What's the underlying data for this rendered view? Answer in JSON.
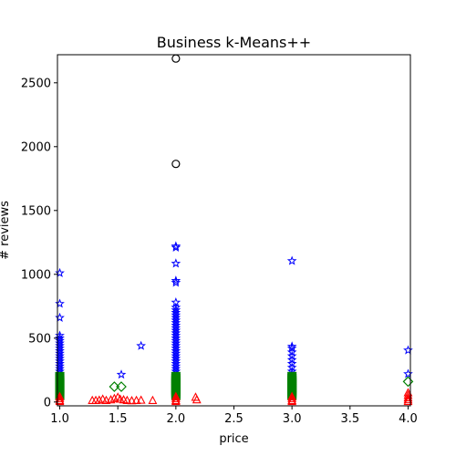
{
  "chart_data": {
    "type": "scatter",
    "title": "Business k-Means++",
    "xlabel": "price",
    "ylabel": "# reviews",
    "xlim": [
      0.98,
      4.02
    ],
    "ylim": [
      -30,
      2720
    ],
    "xticks": [
      "1.0",
      "1.5",
      "2.0",
      "2.5",
      "3.0",
      "3.5",
      "4.0"
    ],
    "xtick_values": [
      1.0,
      1.5,
      2.0,
      2.5,
      3.0,
      3.5,
      4.0
    ],
    "yticks": [
      "0",
      "500",
      "1000",
      "1500",
      "2000",
      "2500"
    ],
    "ytick_values": [
      0,
      500,
      1000,
      1500,
      2000,
      2500
    ],
    "grid": false,
    "series": [
      {
        "marker": "circle",
        "color": "#000000",
        "points": [
          [
            2.0,
            2690
          ],
          [
            2.0,
            1865
          ]
        ]
      },
      {
        "marker": "star",
        "color": "#0000ff",
        "points": [
          [
            1.0,
            1010
          ],
          [
            1.0,
            770
          ],
          [
            1.0,
            660
          ],
          [
            1.0,
            520
          ],
          [
            1.0,
            500
          ],
          [
            1.0,
            480
          ],
          [
            1.0,
            460
          ],
          [
            1.0,
            440
          ],
          [
            1.0,
            420
          ],
          [
            1.0,
            400
          ],
          [
            1.0,
            380
          ],
          [
            1.0,
            360
          ],
          [
            1.0,
            340
          ],
          [
            1.0,
            320
          ],
          [
            1.0,
            300
          ],
          [
            1.0,
            280
          ],
          [
            1.0,
            260
          ],
          [
            1.0,
            240
          ],
          [
            1.0,
            220
          ],
          [
            1.53,
            215
          ],
          [
            1.7,
            440
          ],
          [
            2.0,
            1220
          ],
          [
            2.0,
            1210
          ],
          [
            2.0,
            1085
          ],
          [
            2.0,
            950
          ],
          [
            2.0,
            935
          ],
          [
            2.0,
            780
          ],
          [
            2.0,
            740
          ],
          [
            2.0,
            720
          ],
          [
            2.0,
            700
          ],
          [
            2.0,
            680
          ],
          [
            2.0,
            660
          ],
          [
            2.0,
            640
          ],
          [
            2.0,
            620
          ],
          [
            2.0,
            600
          ],
          [
            2.0,
            580
          ],
          [
            2.0,
            560
          ],
          [
            2.0,
            540
          ],
          [
            2.0,
            520
          ],
          [
            2.0,
            500
          ],
          [
            2.0,
            480
          ],
          [
            2.0,
            460
          ],
          [
            2.0,
            440
          ],
          [
            2.0,
            420
          ],
          [
            2.0,
            400
          ],
          [
            2.0,
            380
          ],
          [
            2.0,
            360
          ],
          [
            2.0,
            340
          ],
          [
            2.0,
            320
          ],
          [
            2.0,
            300
          ],
          [
            2.0,
            280
          ],
          [
            2.0,
            260
          ],
          [
            2.0,
            240
          ],
          [
            2.0,
            220
          ],
          [
            3.0,
            1105
          ],
          [
            3.0,
            435
          ],
          [
            3.0,
            420
          ],
          [
            3.0,
            390
          ],
          [
            3.0,
            360
          ],
          [
            3.0,
            330
          ],
          [
            3.0,
            300
          ],
          [
            3.0,
            270
          ],
          [
            3.0,
            240
          ],
          [
            3.0,
            220
          ],
          [
            4.0,
            405
          ],
          [
            4.0,
            220
          ]
        ]
      },
      {
        "marker": "square",
        "color": "#008000",
        "points": [
          [
            1.0,
            200
          ],
          [
            1.0,
            185
          ],
          [
            1.0,
            170
          ],
          [
            1.0,
            155
          ],
          [
            1.0,
            140
          ],
          [
            1.0,
            125
          ],
          [
            1.0,
            110
          ],
          [
            1.0,
            95
          ],
          [
            1.0,
            80
          ],
          [
            1.0,
            65
          ],
          [
            1.0,
            50
          ],
          [
            2.0,
            200
          ],
          [
            2.0,
            185
          ],
          [
            2.0,
            170
          ],
          [
            2.0,
            155
          ],
          [
            2.0,
            140
          ],
          [
            2.0,
            125
          ],
          [
            2.0,
            110
          ],
          [
            2.0,
            95
          ],
          [
            2.0,
            80
          ],
          [
            2.0,
            65
          ],
          [
            2.0,
            50
          ],
          [
            3.0,
            200
          ],
          [
            3.0,
            185
          ],
          [
            3.0,
            170
          ],
          [
            3.0,
            155
          ],
          [
            3.0,
            140
          ],
          [
            3.0,
            125
          ],
          [
            3.0,
            110
          ],
          [
            3.0,
            95
          ],
          [
            3.0,
            80
          ],
          [
            3.0,
            65
          ],
          [
            3.0,
            50
          ]
        ]
      },
      {
        "marker": "diamond",
        "color": "#008000",
        "points": [
          [
            1.47,
            120
          ],
          [
            1.53,
            120
          ],
          [
            4.0,
            160
          ]
        ]
      },
      {
        "marker": "triangle",
        "color": "#ff0000",
        "points": [
          [
            1.0,
            40
          ],
          [
            1.0,
            25
          ],
          [
            1.0,
            10
          ],
          [
            1.0,
            2
          ],
          [
            1.28,
            10
          ],
          [
            1.31,
            10
          ],
          [
            1.34,
            12
          ],
          [
            1.37,
            20
          ],
          [
            1.4,
            10
          ],
          [
            1.44,
            15
          ],
          [
            1.47,
            25
          ],
          [
            1.5,
            35
          ],
          [
            1.52,
            20
          ],
          [
            1.55,
            15
          ],
          [
            1.58,
            10
          ],
          [
            1.62,
            8
          ],
          [
            1.66,
            10
          ],
          [
            1.7,
            12
          ],
          [
            1.8,
            10
          ],
          [
            2.0,
            40
          ],
          [
            2.0,
            25
          ],
          [
            2.0,
            10
          ],
          [
            2.0,
            2
          ],
          [
            2.17,
            35
          ],
          [
            2.18,
            15
          ],
          [
            3.0,
            40
          ],
          [
            3.0,
            25
          ],
          [
            3.0,
            10
          ],
          [
            3.0,
            2
          ],
          [
            4.0,
            70
          ],
          [
            4.0,
            50
          ],
          [
            4.0,
            30
          ],
          [
            4.0,
            15
          ],
          [
            4.0,
            2
          ]
        ]
      }
    ]
  }
}
